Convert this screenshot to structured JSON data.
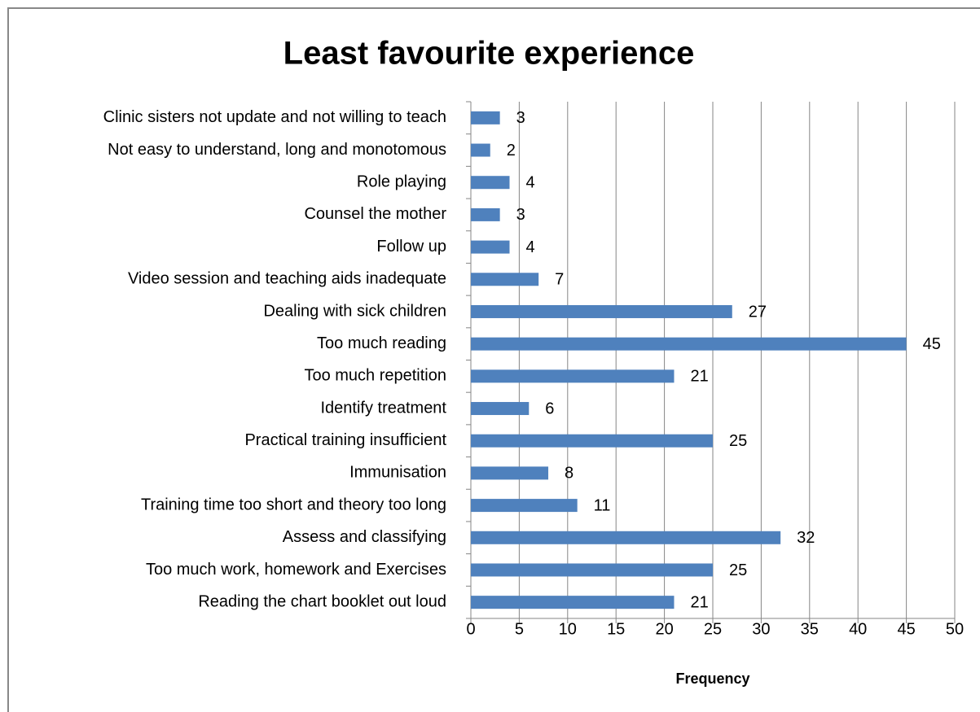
{
  "chart_data": {
    "type": "bar",
    "orientation": "horizontal",
    "title": "Least favourite experience",
    "xlabel": "Frequency",
    "categories": [
      "Clinic sisters not update and not willing to teach",
      "Not easy to understand, long and monotomous",
      "Role playing",
      "Counsel the mother",
      "Follow up",
      "Video session and teaching aids inadequate",
      "Dealing with sick children",
      "Too much reading",
      "Too much repetition",
      "Identify treatment",
      "Practical training insufficient",
      "Immunisation",
      "Training time too short and theory too long",
      "Assess and classifying",
      "Too much work, homework and Exercises",
      "Reading the chart booklet out loud"
    ],
    "values": [
      3,
      2,
      4,
      3,
      4,
      7,
      27,
      45,
      21,
      6,
      25,
      8,
      11,
      32,
      25,
      21
    ],
    "color": "#4f81bd",
    "xlim": [
      0,
      50
    ],
    "xticks": [
      0,
      5,
      10,
      15,
      20,
      25,
      30,
      35,
      40,
      45,
      50
    ],
    "grid": true
  }
}
